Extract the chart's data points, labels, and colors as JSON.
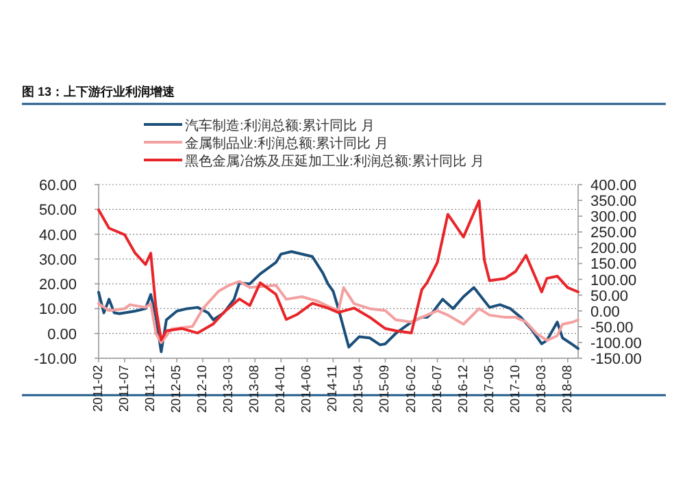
{
  "chart_data": {
    "type": "line",
    "title": "图 13：上下游行业利润增速",
    "xlim": [
      "2011-02",
      "2018-10"
    ],
    "xticks": [
      "2011-02",
      "2011-07",
      "2011-12",
      "2012-05",
      "2012-10",
      "2013-03",
      "2013-08",
      "2014-01",
      "2014-06",
      "2014-11",
      "2015-04",
      "2015-09",
      "2016-02",
      "2016-07",
      "2016-12",
      "2017-05",
      "2017-10",
      "2018-03",
      "2018-08"
    ],
    "ylim": [
      -10,
      60
    ],
    "yticks": [
      {
        "value": -10,
        "label": "-10.00"
      },
      {
        "value": 0,
        "label": "0.00"
      },
      {
        "value": 10,
        "label": "10.00"
      },
      {
        "value": 20,
        "label": "20.00"
      },
      {
        "value": 30,
        "label": "30.00"
      },
      {
        "value": 40,
        "label": "40.00"
      },
      {
        "value": 50,
        "label": "50.00"
      },
      {
        "value": 60,
        "label": "60.00"
      }
    ],
    "y2lim": [
      -150,
      400
    ],
    "y2ticks": [
      {
        "value": -150,
        "label": "-150.00"
      },
      {
        "value": -100,
        "label": "-100.00"
      },
      {
        "value": -50,
        "label": "-50.00"
      },
      {
        "value": 0,
        "label": "0.00"
      },
      {
        "value": 50,
        "label": "50.00"
      },
      {
        "value": 100,
        "label": "100.00"
      },
      {
        "value": 150,
        "label": "150.00"
      },
      {
        "value": 200,
        "label": "200.00"
      },
      {
        "value": 250,
        "label": "250.00"
      },
      {
        "value": 300,
        "label": "300.00"
      },
      {
        "value": 350,
        "label": "350.00"
      },
      {
        "value": 400,
        "label": "400.00"
      }
    ],
    "grid": "y",
    "legend": "top",
    "series": [
      {
        "name": "汽车制造:利润总额:累计同比 月",
        "color": "#1b4f7a",
        "x": [
          "2011-02",
          "2011-03",
          "2011-04",
          "2011-05",
          "2011-06",
          "2011-09",
          "2011-11",
          "2011-12",
          "2012-01",
          "2012-02",
          "2012-03",
          "2012-05",
          "2012-07",
          "2012-09",
          "2012-11",
          "2012-12",
          "2013-02",
          "2013-04",
          "2013-05",
          "2013-07",
          "2013-09",
          "2013-12",
          "2014-01",
          "2014-03",
          "2014-07",
          "2014-09",
          "2014-10",
          "2014-11",
          "2014-12",
          "2015-02",
          "2015-04",
          "2015-06",
          "2015-08",
          "2015-09",
          "2015-11",
          "2016-02",
          "2016-04",
          "2016-05",
          "2016-06",
          "2016-08",
          "2016-10",
          "2016-12",
          "2017-02",
          "2017-05",
          "2017-07",
          "2017-09",
          "2017-11",
          "2018-01",
          "2018-03",
          "2018-04",
          "2018-06",
          "2018-07",
          "2018-09",
          "2018-10"
        ],
        "values": [
          16.6,
          8.3,
          13.8,
          8.3,
          8,
          9,
          10,
          15.7,
          6.5,
          -7.4,
          5.5,
          9,
          10,
          10.5,
          8.3,
          5.5,
          8.3,
          13.8,
          20.3,
          20,
          24,
          28.6,
          32,
          33,
          31,
          24.4,
          20,
          17,
          10,
          -5.5,
          -1.3,
          -1.8,
          -4.6,
          -4.2,
          0,
          4.6,
          6.5,
          6.5,
          8.3,
          13.8,
          10,
          14.8,
          18.5,
          10.5,
          11.6,
          10,
          6.5,
          1.8,
          -4.2,
          -2.8,
          4.6,
          -1.8,
          -4.6,
          -6.1
        ]
      },
      {
        "name": "金属制品业:利润总额:累计同比 月",
        "color": "#f4a0a0",
        "x": [
          "2011-02",
          "2011-04",
          "2011-07",
          "2011-08",
          "2011-11",
          "2011-12",
          "2012-01",
          "2012-02",
          "2012-04",
          "2012-08",
          "2012-10",
          "2013-01",
          "2013-03",
          "2013-05",
          "2013-07",
          "2013-12",
          "2014-02",
          "2014-05",
          "2014-08",
          "2014-10",
          "2014-12",
          "2015-01",
          "2015-03",
          "2015-06",
          "2015-09",
          "2015-11",
          "2016-02",
          "2016-04",
          "2016-07",
          "2016-09",
          "2016-12",
          "2017-03",
          "2017-05",
          "2017-08",
          "2017-10",
          "2017-12",
          "2018-02",
          "2018-04",
          "2018-06",
          "2018-07",
          "2018-09",
          "2018-10"
        ],
        "values": [
          12,
          9.2,
          10,
          11.6,
          10.5,
          12,
          0,
          -3.7,
          1.8,
          2.8,
          10,
          17,
          19.4,
          21,
          18.5,
          19.4,
          13.8,
          14.8,
          13,
          11,
          9.2,
          18.5,
          12,
          10,
          9.2,
          5.5,
          4.6,
          6.5,
          9.2,
          7.4,
          3.7,
          10,
          7.4,
          6.5,
          6.5,
          4.6,
          0,
          -2.8,
          -0.9,
          3.7,
          4.6,
          5.5
        ]
      },
      {
        "name": "黑色金属冶炼及压延加工业:利润总额:累计同比 月",
        "color": "#e8262a",
        "axis": "y2",
        "x": [
          "2011-02",
          "2011-04",
          "2011-07",
          "2011-09",
          "2011-11",
          "2011-12",
          "2012-01",
          "2012-02",
          "2012-03",
          "2012-06",
          "2012-09",
          "2012-12",
          "2013-02",
          "2013-05",
          "2013-07",
          "2013-09",
          "2013-12",
          "2014-02",
          "2014-04",
          "2014-07",
          "2014-10",
          "2014-12",
          "2015-03",
          "2015-06",
          "2015-09",
          "2015-11",
          "2016-02",
          "2016-04",
          "2016-05",
          "2016-07",
          "2016-09",
          "2016-12",
          "2017-03",
          "2017-04",
          "2017-05",
          "2017-08",
          "2017-10",
          "2017-12",
          "2018-03",
          "2018-04",
          "2018-06",
          "2018-08",
          "2018-10"
        ],
        "values": [
          320,
          262,
          241,
          183,
          147,
          183,
          9,
          -92,
          -63,
          -56,
          -70,
          -41,
          -5,
          38,
          17,
          89,
          53,
          -27,
          -12,
          24,
          9,
          -5,
          9,
          -20,
          -56,
          -63,
          -70,
          67,
          89,
          154,
          306,
          234,
          349,
          161,
          96,
          103,
          125,
          176,
          60,
          103,
          110,
          74,
          60
        ]
      }
    ]
  }
}
